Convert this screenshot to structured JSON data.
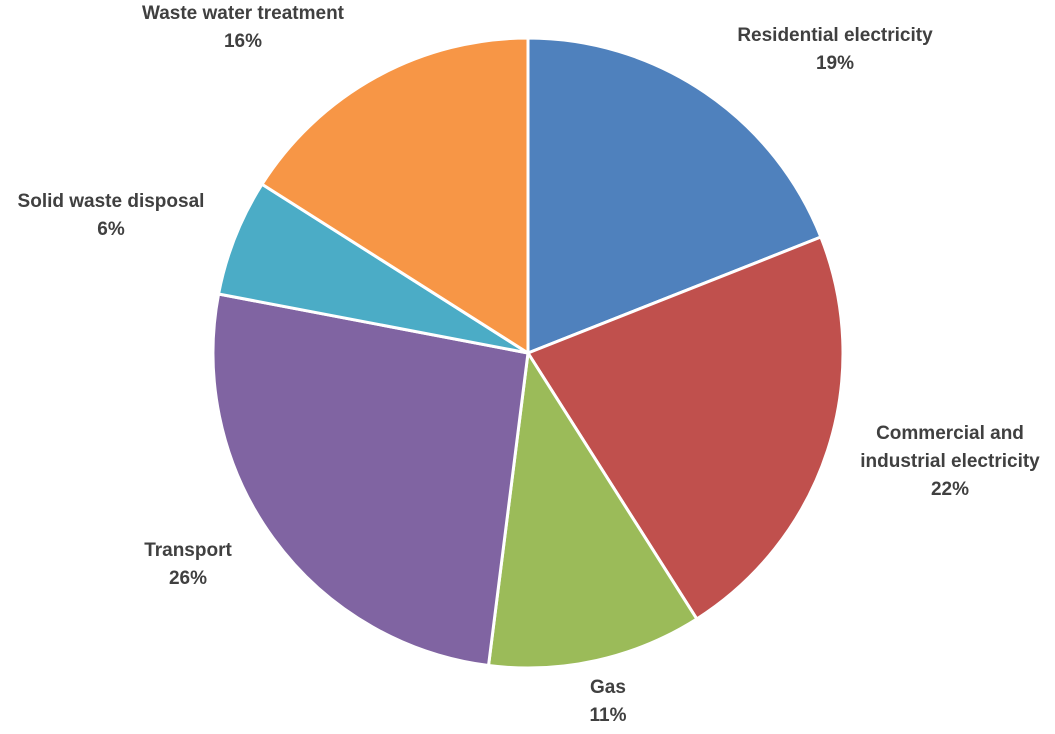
{
  "chart_data": {
    "type": "pie",
    "title": "",
    "start_angle_deg": 0,
    "direction": "clockwise",
    "slices": [
      {
        "label": [
          "Residential electricity"
        ],
        "value": 19,
        "value_label": "19%",
        "color": "#4F81BD"
      },
      {
        "label": [
          "Commercial and",
          "industrial electricity"
        ],
        "value": 22,
        "value_label": "22%",
        "color": "#C0504D"
      },
      {
        "label": [
          "Gas"
        ],
        "value": 11,
        "value_label": "11%",
        "color": "#9BBB59"
      },
      {
        "label": [
          "Transport"
        ],
        "value": 26,
        "value_label": "26%",
        "color": "#8064A2"
      },
      {
        "label": [
          "Solid waste disposal"
        ],
        "value": 6,
        "value_label": "6%",
        "color": "#4BACC6"
      },
      {
        "label": [
          "Waste water treatment"
        ],
        "value": 16,
        "value_label": "16%",
        "color": "#F79646"
      }
    ]
  }
}
